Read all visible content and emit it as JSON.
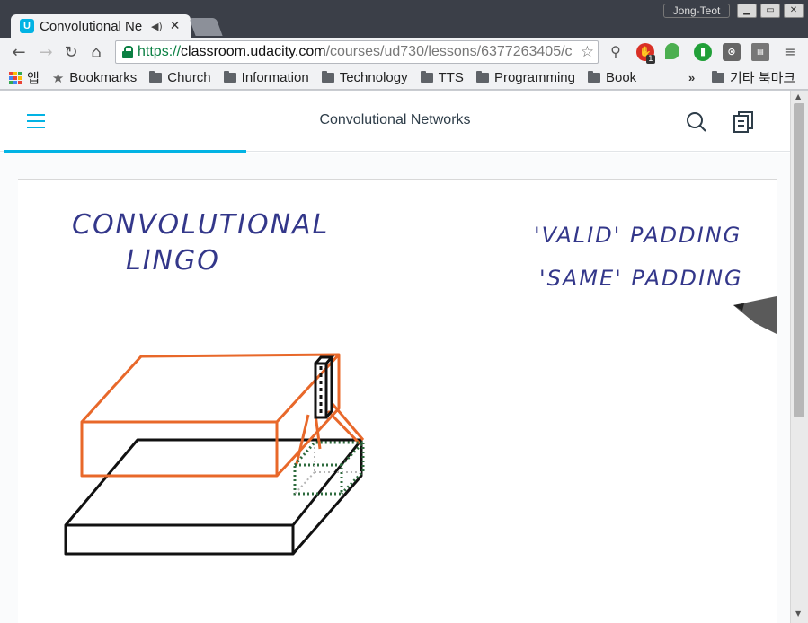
{
  "browser": {
    "tab_title": "Convolutional Ne",
    "profile_name": "Jong-Teot",
    "url": {
      "scheme": "https://",
      "host": "classroom.udacity.com",
      "path": "/courses/ud730/lessons/6377263405/c"
    },
    "extension_badge": "1",
    "bookmarks": {
      "apps_label": "앱",
      "items": [
        {
          "label": "Bookmarks",
          "icon": "star-icon"
        },
        {
          "label": "Church",
          "icon": "folder-icon"
        },
        {
          "label": "Information",
          "icon": "folder-icon"
        },
        {
          "label": "Technology",
          "icon": "folder-icon"
        },
        {
          "label": "TTS",
          "icon": "folder-icon"
        },
        {
          "label": "Programming",
          "icon": "folder-icon"
        },
        {
          "label": "Book",
          "icon": "folder-icon"
        }
      ],
      "overflow": "»",
      "other_bookmarks": "기타 북마크"
    }
  },
  "page": {
    "title": "Convolutional Networks",
    "accent_color": "#02b3e4"
  },
  "video": {
    "heading_line1": "CONVOLUTIONAL",
    "heading_line2": "LINGO",
    "note_line1": "'VALID' PADDING",
    "note_line2": "'SAME' PADDING"
  }
}
